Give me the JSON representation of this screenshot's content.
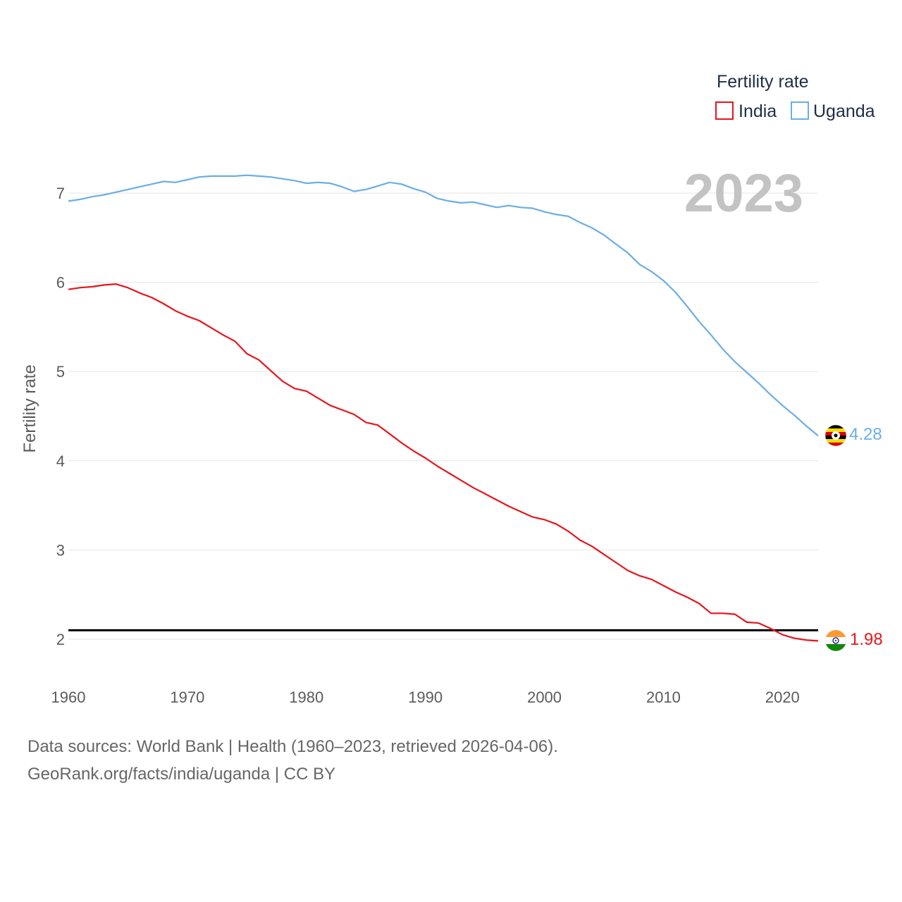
{
  "chart_data": {
    "type": "line",
    "title": "",
    "ylabel": "Fertility rate",
    "xlabel": "",
    "year_label": "2023",
    "legend_title": "Fertility rate",
    "legend_position": "top-right",
    "xlim": [
      1960,
      2023
    ],
    "ylim": [
      1.5,
      7.5
    ],
    "x_ticks": [
      1960,
      1970,
      1980,
      1990,
      2000,
      2010,
      2020
    ],
    "y_ticks": [
      2,
      3,
      4,
      5,
      6,
      7
    ],
    "reference_line": 2.1,
    "x": [
      1960,
      1961,
      1962,
      1963,
      1964,
      1965,
      1966,
      1967,
      1968,
      1969,
      1970,
      1971,
      1972,
      1973,
      1974,
      1975,
      1976,
      1977,
      1978,
      1979,
      1980,
      1981,
      1982,
      1983,
      1984,
      1985,
      1986,
      1987,
      1988,
      1989,
      1990,
      1991,
      1992,
      1993,
      1994,
      1995,
      1996,
      1997,
      1998,
      1999,
      2000,
      2001,
      2002,
      2003,
      2004,
      2005,
      2006,
      2007,
      2008,
      2009,
      2010,
      2011,
      2012,
      2013,
      2014,
      2015,
      2016,
      2017,
      2018,
      2019,
      2020,
      2021,
      2022,
      2023
    ],
    "series": [
      {
        "name": "India",
        "color": "#e8151b",
        "end_label": "1.98",
        "values": [
          5.92,
          5.94,
          5.95,
          5.97,
          5.98,
          5.94,
          5.88,
          5.83,
          5.76,
          5.68,
          5.62,
          5.57,
          5.49,
          5.41,
          5.34,
          5.2,
          5.13,
          5.01,
          4.89,
          4.81,
          4.78,
          4.7,
          4.62,
          4.57,
          4.52,
          4.43,
          4.4,
          4.3,
          4.2,
          4.11,
          4.03,
          3.94,
          3.86,
          3.78,
          3.7,
          3.63,
          3.56,
          3.49,
          3.43,
          3.37,
          3.34,
          3.29,
          3.21,
          3.11,
          3.04,
          2.95,
          2.86,
          2.77,
          2.71,
          2.67,
          2.6,
          2.53,
          2.47,
          2.4,
          2.29,
          2.29,
          2.28,
          2.19,
          2.18,
          2.12,
          2.05,
          2.01,
          1.99,
          1.98
        ]
      },
      {
        "name": "Uganda",
        "color": "#6aaee6",
        "end_label": "4.28",
        "values": [
          6.91,
          6.93,
          6.96,
          6.98,
          7.01,
          7.04,
          7.07,
          7.1,
          7.13,
          7.12,
          7.15,
          7.18,
          7.19,
          7.19,
          7.19,
          7.2,
          7.19,
          7.18,
          7.16,
          7.14,
          7.11,
          7.12,
          7.11,
          7.07,
          7.02,
          7.04,
          7.08,
          7.12,
          7.1,
          7.05,
          7.01,
          6.94,
          6.91,
          6.89,
          6.9,
          6.87,
          6.84,
          6.86,
          6.84,
          6.83,
          6.79,
          6.76,
          6.74,
          6.67,
          6.61,
          6.53,
          6.43,
          6.33,
          6.2,
          6.12,
          6.02,
          5.89,
          5.73,
          5.56,
          5.41,
          5.25,
          5.11,
          4.99,
          4.87,
          4.74,
          4.62,
          4.51,
          4.39,
          4.28
        ]
      }
    ],
    "source_line1": "Data sources: World Bank | Health (1960–2023, retrieved 2026-04-06).",
    "source_line2": "GeoRank.org/facts/india/uganda | CC BY"
  }
}
